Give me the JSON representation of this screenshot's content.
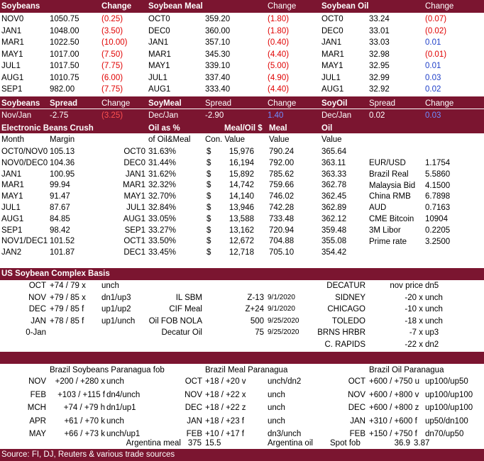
{
  "colors": {
    "band": "#7b1530",
    "negative": "#e00000",
    "positive": "#1f3fc8"
  },
  "futures": {
    "headers": [
      "Soybeans",
      "Change",
      "Soybean Meal",
      "Change",
      "Soybean Oil",
      "Change"
    ],
    "soybeans": [
      {
        "m": "NOV0",
        "p": "1050.75",
        "c": "(0.25)"
      },
      {
        "m": "JAN1",
        "p": "1048.00",
        "c": "(3.50)"
      },
      {
        "m": "MAR1",
        "p": "1022.50",
        "c": "(10.00)"
      },
      {
        "m": "MAY1",
        "p": "1017.00",
        "c": "(7.50)"
      },
      {
        "m": "JUL1",
        "p": "1017.50",
        "c": "(7.75)"
      },
      {
        "m": "AUG1",
        "p": "1010.75",
        "c": "(6.00)"
      },
      {
        "m": "SEP1",
        "p": "982.00",
        "c": "(7.75)"
      }
    ],
    "meal": [
      {
        "m": "OCT0",
        "p": "359.20",
        "c": "(1.80)"
      },
      {
        "m": "DEC0",
        "p": "360.00",
        "c": "(1.80)"
      },
      {
        "m": "JAN1",
        "p": "357.10",
        "c": "(0.40)"
      },
      {
        "m": "MAR1",
        "p": "345.30",
        "c": "(4.40)"
      },
      {
        "m": "MAY1",
        "p": "339.10",
        "c": "(5.00)"
      },
      {
        "m": "JUL1",
        "p": "337.40",
        "c": "(4.90)"
      },
      {
        "m": "AUG1",
        "p": "333.40",
        "c": "(4.40)"
      }
    ],
    "oil": [
      {
        "m": "OCT0",
        "p": "33.24",
        "c": "(0.07)"
      },
      {
        "m": "DEC0",
        "p": "33.01",
        "c": "(0.02)"
      },
      {
        "m": "JAN1",
        "p": "33.03",
        "c": "0.01"
      },
      {
        "m": "MAR1",
        "p": "32.98",
        "c": "(0.01)"
      },
      {
        "m": "MAY1",
        "p": "32.95",
        "c": "0.01"
      },
      {
        "m": "JUL1",
        "p": "32.99",
        "c": "0.03"
      },
      {
        "m": "AUG1",
        "p": "32.92",
        "c": "0.02"
      }
    ]
  },
  "spreads": {
    "headers": [
      "Soybeans",
      "Spread",
      "Change",
      "SoyMeal",
      "Spread",
      "Change",
      "SoyOil",
      "Spread",
      "Change"
    ],
    "row": [
      "Nov/Jan",
      "-2.75",
      "(3.25)",
      "Dec/Jan",
      "-2.90",
      "1.40",
      "Dec/Jan",
      "0.02",
      "0.03"
    ]
  },
  "crush": {
    "title": "Electronic Beans Crush",
    "header1": [
      "Oil as %",
      "Meal/Oil $",
      "Meal",
      "Oil"
    ],
    "header2": [
      "Month",
      "Margin",
      "of Oil&Meal",
      "Con. Value",
      "Value",
      "Value"
    ],
    "rows": [
      {
        "month": "OCT0/NOV0",
        "margin": "105.13",
        "om": "OCT0",
        "pct": "31.63%",
        "d": "$",
        "cv": "15,976",
        "meal": "790.24",
        "oil": "365.64"
      },
      {
        "month": "NOV0/DEC0",
        "margin": "104.36",
        "om": "DEC0",
        "pct": "31.44%",
        "d": "$",
        "cv": "16,194",
        "meal": "792.00",
        "oil": "363.11"
      },
      {
        "month": "JAN1",
        "margin": "100.95",
        "om": "JAN1",
        "pct": "31.62%",
        "d": "$",
        "cv": "15,892",
        "meal": "785.62",
        "oil": "363.33"
      },
      {
        "month": "MAR1",
        "margin": "99.94",
        "om": "MAR1",
        "pct": "32.32%",
        "d": "$",
        "cv": "14,742",
        "meal": "759.66",
        "oil": "362.78"
      },
      {
        "month": "MAY1",
        "margin": "91.47",
        "om": "MAY1",
        "pct": "32.70%",
        "d": "$",
        "cv": "14,140",
        "meal": "746.02",
        "oil": "362.45"
      },
      {
        "month": "JUL1",
        "margin": "87.67",
        "om": "JUL1",
        "pct": "32.84%",
        "d": "$",
        "cv": "13,946",
        "meal": "742.28",
        "oil": "362.89"
      },
      {
        "month": "AUG1",
        "margin": "84.85",
        "om": "AUG1",
        "pct": "33.05%",
        "d": "$",
        "cv": "13,588",
        "meal": "733.48",
        "oil": "362.12"
      },
      {
        "month": "SEP1",
        "margin": "98.42",
        "om": "SEP1",
        "pct": "33.27%",
        "d": "$",
        "cv": "13,162",
        "meal": "720.94",
        "oil": "359.48"
      },
      {
        "month": "NOV1/DEC1",
        "margin": "101.52",
        "om": "OCT1",
        "pct": "33.50%",
        "d": "$",
        "cv": "12,672",
        "meal": "704.88",
        "oil": "355.08"
      },
      {
        "month": "JAN2",
        "margin": "101.87",
        "om": "DEC1",
        "pct": "33.45%",
        "d": "$",
        "cv": "12,718",
        "meal": "705.10",
        "oil": "354.42"
      }
    ],
    "markets": [
      {
        "label": "EUR/USD",
        "value": "1.1754"
      },
      {
        "label": "Brazil Real",
        "value": "5.5860"
      },
      {
        "label": "Malaysia Bid",
        "value": "4.1500"
      },
      {
        "label": "China RMB",
        "value": "6.7898"
      },
      {
        "label": "AUD",
        "value": "0.7163"
      },
      {
        "label": "CME Bitcoin",
        "value": "10904"
      },
      {
        "label": "3M Libor",
        "value": "0.2205"
      },
      {
        "label": "Prime rate",
        "value": "3.2500"
      }
    ]
  },
  "basis": {
    "title": "US Soybean Complex Basis",
    "left": [
      {
        "m": "OCT",
        "v": "+74 / 79 x",
        "ch": "unch"
      },
      {
        "m": "NOV",
        "v": "+79 / 85 x",
        "ch": "dn1/up3"
      },
      {
        "m": "DEC",
        "v": "+79 / 85 f",
        "ch": "up1/up2"
      },
      {
        "m": "JAN",
        "v": "+78 / 85 f",
        "ch": "up1/unch"
      },
      {
        "m": "0-Jan",
        "v": "",
        "ch": ""
      }
    ],
    "mid": [
      {
        "label": "",
        "v": "",
        "d": ""
      },
      {
        "label": "IL SBM",
        "v": "Z-13",
        "d": "9/1/2020"
      },
      {
        "label": "CIF Meal",
        "v": "Z+24",
        "d": "9/1/2020"
      },
      {
        "label": "Oil FOB NOLA",
        "v": "500",
        "d": "9/25/2020"
      },
      {
        "label": "Decatur Oil",
        "v": "75",
        "d": "9/25/2020"
      }
    ],
    "right": [
      {
        "loc": "DECATUR",
        "v": "nov price",
        "ch": "dn5"
      },
      {
        "loc": "SIDNEY",
        "v": "-20 x",
        "ch": "unch"
      },
      {
        "loc": "CHICAGO",
        "v": "-10 x",
        "ch": "unch"
      },
      {
        "loc": "TOLEDO",
        "v": "-18 x",
        "ch": "unch"
      },
      {
        "loc": "BRNS HRBR",
        "v": "-7 x",
        "ch": "up3"
      },
      {
        "loc": "C. RAPIDS",
        "v": "-22 x",
        "ch": "dn2"
      }
    ]
  },
  "brazil": {
    "titles": [
      "Brazil Soybeans Paranagua fob",
      "Brazil Meal Paranagua",
      "Brazil Oil Paranagua"
    ],
    "beans": [
      {
        "m": "NOV",
        "v": "+200 / +280 x",
        "ch": "unch"
      },
      {
        "m": "FEB",
        "v": "+103 / +115 f",
        "ch": "dn4/unch"
      },
      {
        "m": "MCH",
        "v": "+74 / +79 h",
        "ch": "dn1/up1"
      },
      {
        "m": "APR",
        "v": "+61 / +70 k",
        "ch": "unch"
      },
      {
        "m": "MAY",
        "v": "+66 / +73 k",
        "ch": "unch/up1"
      }
    ],
    "meal": [
      {
        "m": "OCT",
        "v": "+18 / +20 v",
        "ch": "unch/dn2"
      },
      {
        "m": "NOV",
        "v": "+18 / +22 x",
        "ch": "unch"
      },
      {
        "m": "DEC",
        "v": "+18 / +22 z",
        "ch": "unch"
      },
      {
        "m": "JAN",
        "v": "+18 / +23 f",
        "ch": "unch"
      },
      {
        "m": "FEB",
        "v": "+10 / +17 f",
        "ch": "dn3/unch"
      }
    ],
    "oil": [
      {
        "m": "OCT",
        "v": "+600 / +750 u",
        "ch": "up100/up50"
      },
      {
        "m": "NOV",
        "v": "+600 / +800 v",
        "ch": "up100/up100"
      },
      {
        "m": "DEC",
        "v": "+600 / +800 z",
        "ch": "up100/up100"
      },
      {
        "m": "JAN",
        "v": "+310 / +600 f",
        "ch": "up50/dn100"
      },
      {
        "m": "FEB",
        "v": "+150 / +750 f",
        "ch": "dn70/up50"
      }
    ],
    "footer_row": {
      "arg_meal_label": "Argentina meal",
      "arg_meal_v1": "375",
      "arg_meal_v2": "15.5",
      "arg_oil_label": "Argentina oil",
      "spot_label": "Spot fob",
      "spot_v1": "36.9",
      "spot_v2": "3.87"
    }
  },
  "source": "Source: FI, DJ, Reuters & various trade sources"
}
